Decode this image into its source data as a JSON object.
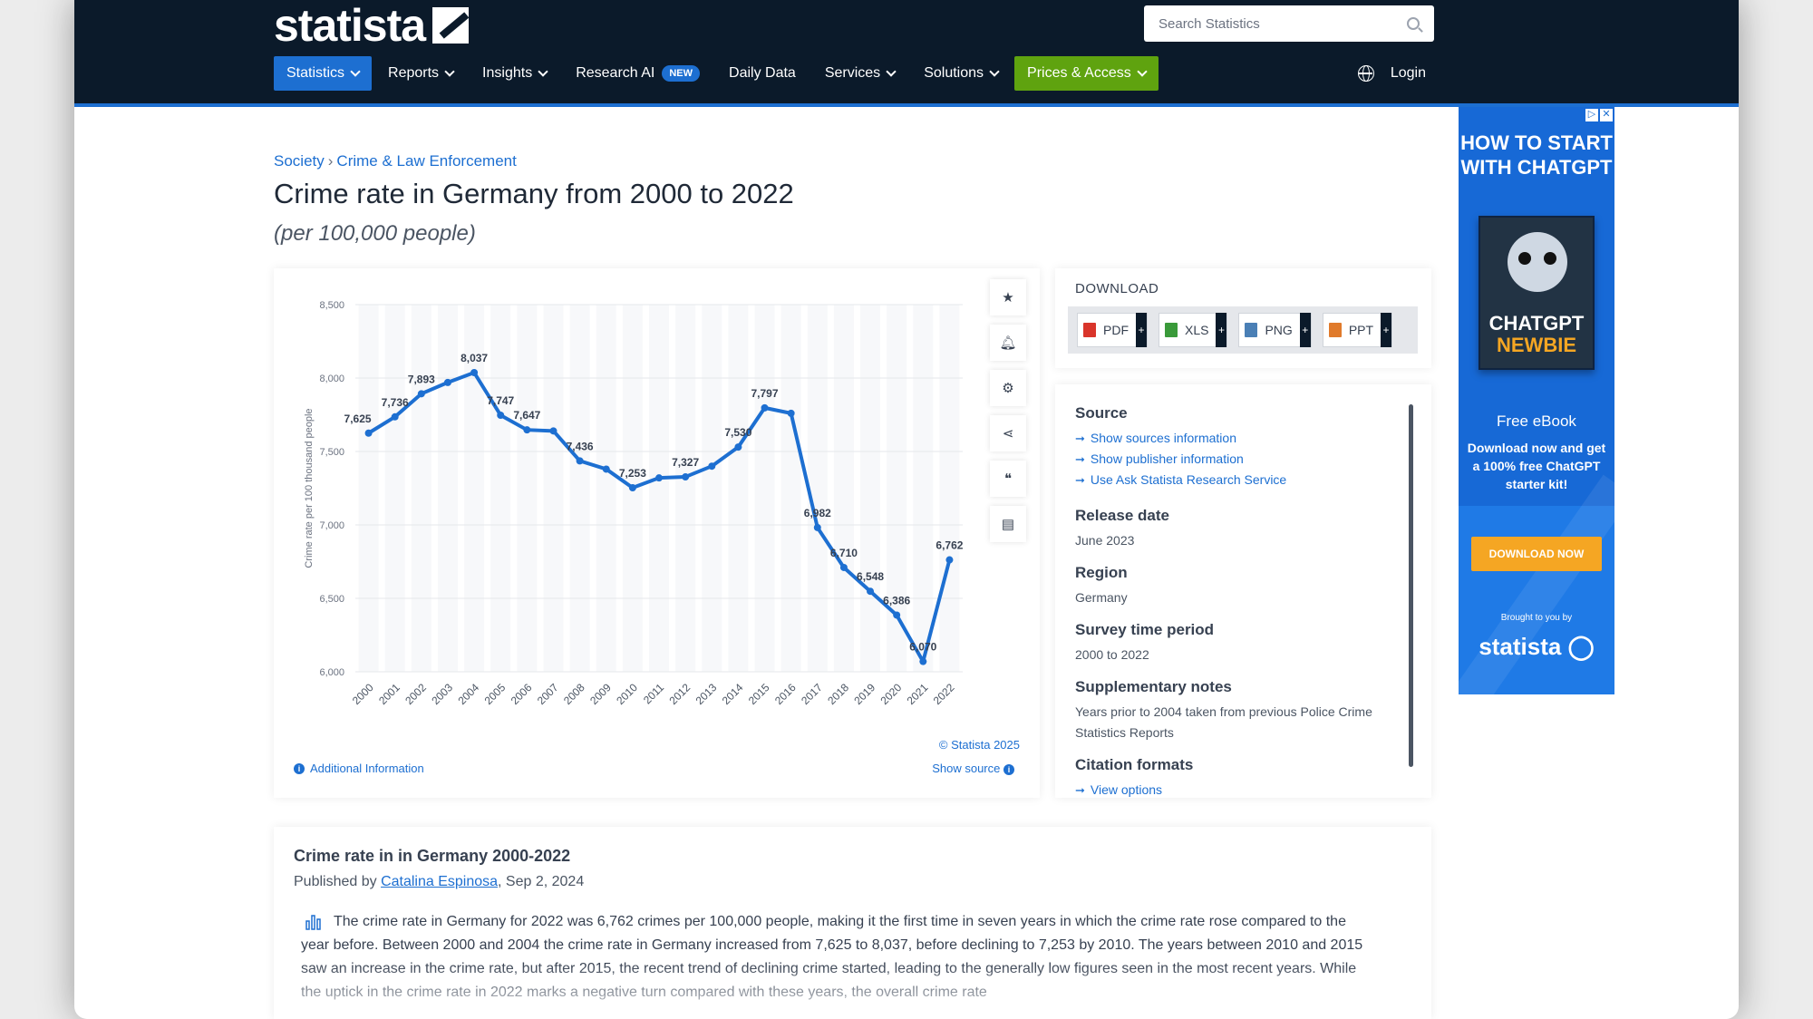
{
  "header": {
    "logo_text": "statista",
    "search_placeholder": "Search Statistics",
    "nav": [
      {
        "label": "Statistics",
        "dropdown": true
      },
      {
        "label": "Reports",
        "dropdown": true
      },
      {
        "label": "Insights",
        "dropdown": true
      },
      {
        "label": "Research AI",
        "badge": "NEW"
      },
      {
        "label": "Daily Data"
      },
      {
        "label": "Services",
        "dropdown": true
      },
      {
        "label": "Solutions",
        "dropdown": true
      },
      {
        "label": "Prices & Access",
        "dropdown": true
      }
    ],
    "login": "Login",
    "colors": {
      "bg": "#0b1a2a",
      "accent": "#1d6fd1",
      "cta": "#5fa30f"
    }
  },
  "breadcrumb": {
    "items": [
      "Society",
      "Crime & Law Enforcement"
    ],
    "separator": "›"
  },
  "page": {
    "title": "Crime rate in Germany from 2000 to 2022",
    "subtitle": "(per 100,000 people)"
  },
  "chart_tools": [
    "star-icon",
    "bell-icon",
    "gear-icon",
    "share-icon",
    "quote-icon",
    "print-icon"
  ],
  "chart_data": {
    "type": "line",
    "categories": [
      "2000",
      "2001",
      "2002",
      "2003",
      "2004",
      "2005",
      "2006",
      "2007",
      "2008",
      "2009",
      "2010",
      "2011",
      "2012",
      "2013",
      "2014",
      "2015",
      "2016",
      "2017",
      "2018",
      "2019",
      "2020",
      "2021",
      "2022"
    ],
    "values": [
      7625,
      7736,
      7893,
      7970,
      8037,
      7747,
      7647,
      7640,
      7436,
      7380,
      7253,
      7320,
      7327,
      7400,
      7530,
      7797,
      7760,
      6982,
      6710,
      6548,
      6386,
      6070,
      6762
    ],
    "labels_shown": {
      "0": "7,625",
      "1": "7,736",
      "2": "7,893",
      "4": "8,037",
      "5": "7,747",
      "6": "7,647",
      "8": "7,436",
      "10": "7,253",
      "12": "7,327",
      "14": "7,530",
      "15": "7,797",
      "17": "6,982",
      "18": "6,710",
      "19": "6,548",
      "20": "6,386",
      "21": "6,070",
      "22": "6,762"
    },
    "ylabel": "Crime rate per 100 thousand people",
    "ylim": [
      6000,
      8500
    ],
    "yticks": [
      "6,000",
      "6,500",
      "7,000",
      "7,500",
      "8,000",
      "8,500"
    ],
    "ytick_values": [
      6000,
      6500,
      7000,
      7500,
      8000,
      8500
    ],
    "grid": true,
    "color": "#1d6fd1"
  },
  "chart_footer": {
    "credit": "© Statista 2025",
    "show_source": "Show source",
    "additional_info": "Additional Information"
  },
  "download": {
    "title": "DOWNLOAD",
    "formats": [
      {
        "label": "PDF",
        "color": "#d9352b"
      },
      {
        "label": "XLS",
        "color": "#3a9a3a"
      },
      {
        "label": "PNG",
        "color": "#4a7fb5"
      },
      {
        "label": "PPT",
        "color": "#e07a2b"
      }
    ]
  },
  "info": {
    "source_title": "Source",
    "source_links": [
      "Show sources information",
      "Show publisher information",
      "Use Ask Statista Research Service"
    ],
    "release_title": "Release date",
    "release_value": "June 2023",
    "region_title": "Region",
    "region_value": "Germany",
    "period_title": "Survey time period",
    "period_value": "2000 to 2022",
    "notes_title": "Supplementary notes",
    "notes_value": "Years prior to 2004 taken from previous Police Crime Statistics Reports",
    "citation_title": "Citation formats",
    "citation_link": "View options"
  },
  "ad": {
    "headline": "HOW TO START WITH CHATGPT",
    "book_line1": "CHATGPT",
    "book_line2": "NEWBIE",
    "free": "Free eBook",
    "body": "Download now and get a 100% free ChatGPT starter kit!",
    "button": "DOWNLOAD NOW",
    "brought": "Brought to you by",
    "brand": "statista"
  },
  "article": {
    "title": "Crime rate in in Germany 2000-2022",
    "published_prefix": "Published by ",
    "author": "Catalina Espinosa",
    "date": ", Sep 2, 2024",
    "text": "The crime rate in Germany for 2022 was 6,762 crimes per 100,000 people, making it the first time in seven years in which the crime rate rose compared to the year before. Between 2000 and 2004 the crime rate in Germany increased from 7,625 to 8,037, before declining to 7,253 by 2010. The years between 2010 and 2015 saw an increase in the crime rate, but after 2015, the recent trend of declining crime started, leading to the generally low figures seen in the most recent years. While the uptick in the crime rate in 2022 marks a negative turn compared with these years, the overall crime rate"
  }
}
